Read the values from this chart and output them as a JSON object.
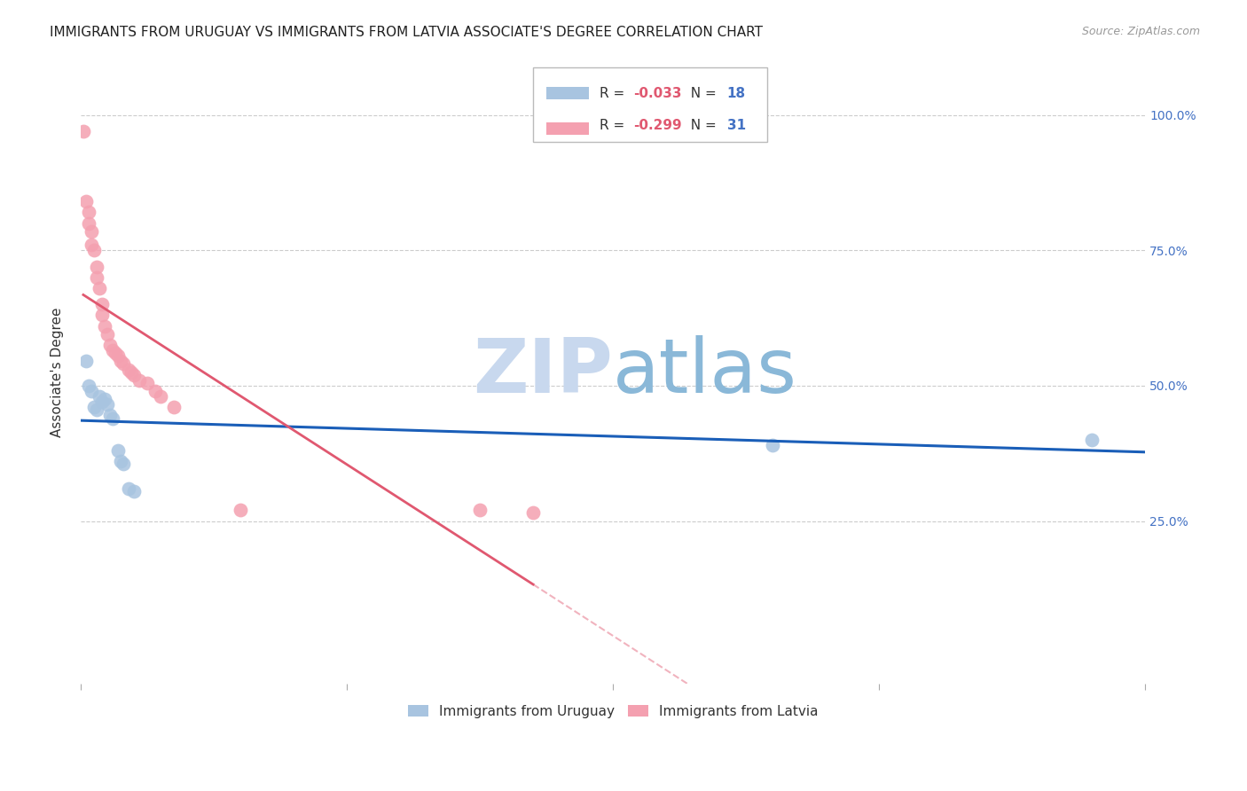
{
  "title": "IMMIGRANTS FROM URUGUAY VS IMMIGRANTS FROM LATVIA ASSOCIATE'S DEGREE CORRELATION CHART",
  "source": "Source: ZipAtlas.com",
  "ylabel": "Associate's Degree",
  "ytick_values": [
    0.25,
    0.5,
    0.75,
    1.0
  ],
  "ytick_labels": [
    "25.0%",
    "50.0%",
    "75.0%",
    "100.0%"
  ],
  "xlim": [
    0.0,
    0.4
  ],
  "ylim": [
    -0.05,
    1.1
  ],
  "legend_r_uruguay": "-0.033",
  "legend_n_uruguay": "18",
  "legend_r_latvia": "-0.299",
  "legend_n_latvia": "31",
  "color_uruguay": "#a8c4e0",
  "color_latvia": "#f4a0b0",
  "trendline_color_uruguay": "#1a5eb8",
  "trendline_color_latvia": "#e05870",
  "legend_r_color": "#e05870",
  "legend_n_color": "#4472c4",
  "watermark_zip_color": "#c8d8ee",
  "watermark_atlas_color": "#8ab0d8",
  "grid_color": "#cccccc",
  "background_color": "#ffffff",
  "title_fontsize": 11,
  "axis_label_fontsize": 11,
  "tick_fontsize": 10,
  "legend_fontsize": 11,
  "source_fontsize": 9,
  "uruguay_x": [
    0.002,
    0.003,
    0.004,
    0.005,
    0.006,
    0.007,
    0.008,
    0.009,
    0.01,
    0.011,
    0.012,
    0.014,
    0.015,
    0.016,
    0.018,
    0.02,
    0.26,
    0.38
  ],
  "uruguay_y": [
    0.545,
    0.5,
    0.49,
    0.46,
    0.455,
    0.48,
    0.47,
    0.475,
    0.465,
    0.445,
    0.44,
    0.38,
    0.36,
    0.355,
    0.31,
    0.305,
    0.39,
    0.4
  ],
  "latvia_x": [
    0.001,
    0.002,
    0.003,
    0.003,
    0.004,
    0.004,
    0.005,
    0.006,
    0.006,
    0.007,
    0.008,
    0.008,
    0.009,
    0.01,
    0.011,
    0.012,
    0.013,
    0.014,
    0.015,
    0.016,
    0.018,
    0.019,
    0.02,
    0.022,
    0.025,
    0.028,
    0.03,
    0.035,
    0.06,
    0.15,
    0.17
  ],
  "latvia_y": [
    0.97,
    0.84,
    0.82,
    0.8,
    0.785,
    0.76,
    0.75,
    0.72,
    0.7,
    0.68,
    0.65,
    0.63,
    0.61,
    0.595,
    0.575,
    0.565,
    0.56,
    0.555,
    0.545,
    0.54,
    0.53,
    0.525,
    0.52,
    0.51,
    0.505,
    0.49,
    0.48,
    0.46,
    0.27,
    0.27,
    0.265
  ]
}
